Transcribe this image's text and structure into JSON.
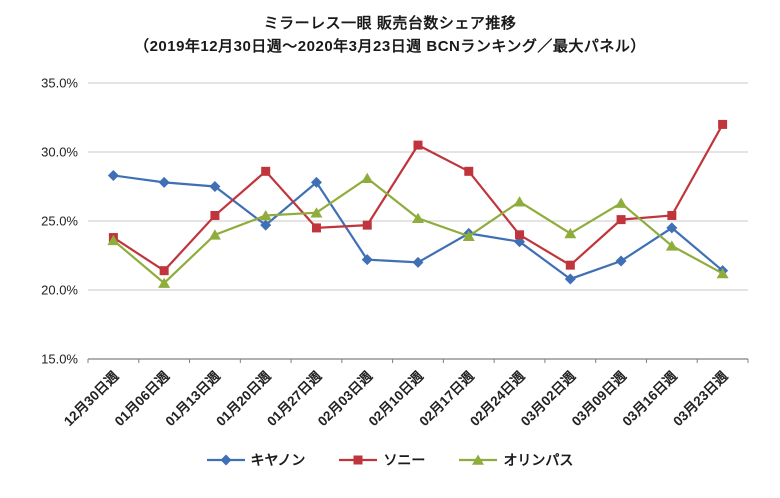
{
  "title_line1": "ミラーレス一眼  販売台数シェア推移",
  "title_line2": "（2019年12月30日週～2020年3月23日週  BCNランキング／最大パネル）",
  "chart_data": {
    "type": "line",
    "categories": [
      "12月30日週",
      "01月06日週",
      "01月13日週",
      "01月20日週",
      "01月27日週",
      "02月03日週",
      "02月10日週",
      "02月17日週",
      "02月24日週",
      "03月02日週",
      "03月09日週",
      "03月16日週",
      "03月23日週"
    ],
    "series": [
      {
        "name": "キヤノン",
        "color": "#3F6FB5",
        "marker": "diamond",
        "values": [
          28.3,
          27.8,
          27.5,
          24.7,
          27.8,
          22.2,
          22.0,
          24.1,
          23.5,
          20.8,
          22.1,
          24.5,
          21.4
        ]
      },
      {
        "name": "ソニー",
        "color": "#C0353C",
        "marker": "square",
        "values": [
          23.8,
          21.4,
          25.4,
          28.6,
          24.5,
          24.7,
          30.5,
          28.6,
          24.0,
          21.8,
          25.1,
          25.4,
          32.0
        ]
      },
      {
        "name": "オリンパス",
        "color": "#8FAD3D",
        "marker": "triangle",
        "values": [
          23.6,
          20.5,
          24.0,
          25.4,
          25.6,
          28.1,
          25.2,
          23.9,
          26.4,
          24.1,
          26.3,
          23.2,
          21.2
        ]
      }
    ],
    "ylim": [
      15.0,
      35.0
    ],
    "ytick_step": 5.0,
    "ytick_labels": [
      "15.0%",
      "20.0%",
      "25.0%",
      "30.0%",
      "35.0%"
    ],
    "grid": true,
    "legend_position": "bottom",
    "axis_color": "#808080",
    "grid_color": "#c9c9c9",
    "tick_label_color": "#222222"
  }
}
